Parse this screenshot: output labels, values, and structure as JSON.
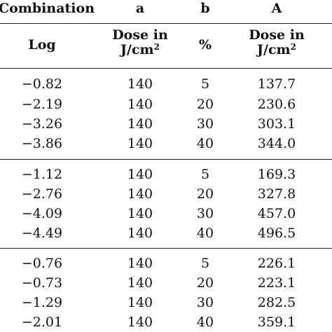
{
  "header": {
    "row1": [
      "Combination",
      "a",
      "b",
      "A"
    ],
    "row2": {
      "log": "Log",
      "dose_a_line1": "Dose in",
      "dose_a_unit": "J/cm",
      "dose_a_sup": "2",
      "percent": "%",
      "dose_A_line1": "Dose in",
      "dose_A_unit": "J/cm",
      "dose_A_sup": "2"
    }
  },
  "groups": [
    {
      "rows": [
        {
          "log": "−0.82",
          "a": "140",
          "b": "5",
          "A": "137.7"
        },
        {
          "log": "−2.19",
          "a": "140",
          "b": "20",
          "A": "230.6"
        },
        {
          "log": "−3.26",
          "a": "140",
          "b": "30",
          "A": "303.1"
        },
        {
          "log": "−3.86",
          "a": "140",
          "b": "40",
          "A": "344.0"
        }
      ]
    },
    {
      "rows": [
        {
          "log": "−1.12",
          "a": "140",
          "b": "5",
          "A": "169.3"
        },
        {
          "log": "−2.76",
          "a": "140",
          "b": "20",
          "A": "327.8"
        },
        {
          "log": "−4.09",
          "a": "140",
          "b": "30",
          "A": "457.0"
        },
        {
          "log": "−4.49",
          "a": "140",
          "b": "40",
          "A": "496.5"
        }
      ]
    },
    {
      "rows": [
        {
          "log": "−0.76",
          "a": "140",
          "b": "5",
          "A": "226.1"
        },
        {
          "log": "−0.73",
          "a": "140",
          "b": "20",
          "A": "223.1"
        },
        {
          "log": "−1.29",
          "a": "140",
          "b": "30",
          "A": "282.5"
        },
        {
          "log": "−2.01",
          "a": "140",
          "b": "40",
          "A": "359.1"
        }
      ]
    }
  ]
}
